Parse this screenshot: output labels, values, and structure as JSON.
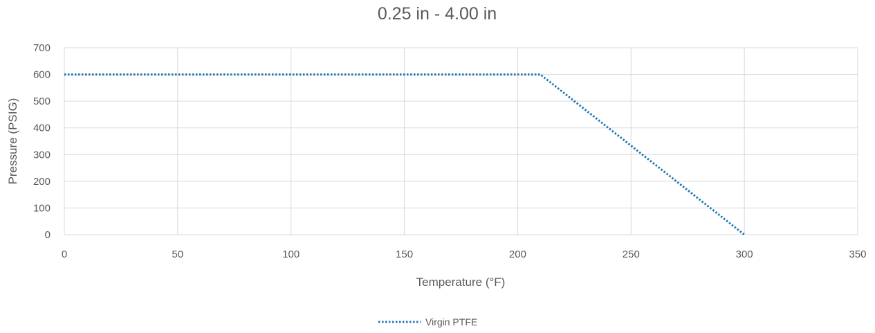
{
  "chart_data": {
    "type": "line",
    "title": "0.25 in - 4.00 in",
    "xlabel": "Temperature (°F)",
    "ylabel": "Pressure (PSIG)",
    "xlim": [
      0,
      350
    ],
    "ylim": [
      0,
      700
    ],
    "x_ticks": [
      0,
      50,
      100,
      150,
      200,
      250,
      300,
      350
    ],
    "y_ticks": [
      0,
      100,
      200,
      300,
      400,
      500,
      600,
      700
    ],
    "grid": true,
    "legend_position": "bottom",
    "series": [
      {
        "name": "Virgin PTFE",
        "color": "#1f77b4",
        "line_style": "dotted",
        "x": [
          0,
          210,
          300
        ],
        "y": [
          600,
          600,
          0
        ]
      }
    ]
  }
}
